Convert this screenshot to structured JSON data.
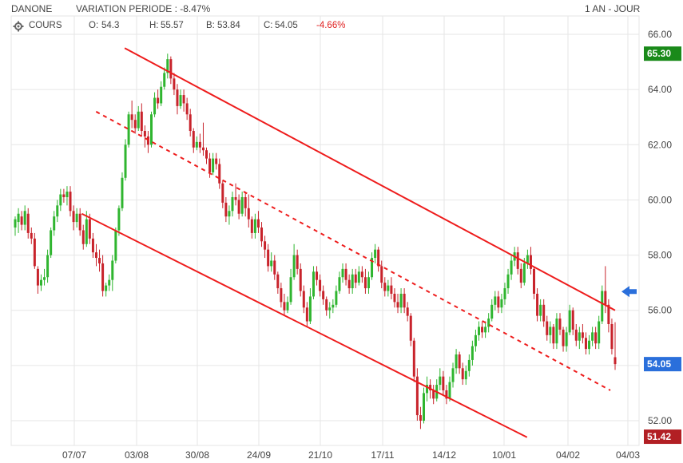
{
  "header": {
    "symbol": "DANONE",
    "variation_label": "VARIATION PERIODE : -8.47%",
    "period": "1 AN - JOUR"
  },
  "ohlc_bar": {
    "series_label": "COURS",
    "open_label": "O:",
    "open": "54.3",
    "high_label": "H:",
    "high": "55.57",
    "low_label": "B:",
    "low": "53.84",
    "close_label": "C:",
    "close": "54.05",
    "change": "-4.66%"
  },
  "colors": {
    "up": "#2fb52f",
    "down": "#c8232b",
    "trend": "#ee1c1c",
    "grid": "#e6e6e6",
    "badge_high": "#1a8a1a",
    "badge_last": "#2a6fdb",
    "badge_low": "#b21f24",
    "arrow": "#2a6fdb"
  },
  "badges": {
    "high": "65.30",
    "last": "54.05",
    "low": "51.42"
  },
  "icons": {
    "settings": "gear-icon",
    "marker": "arrow-left-icon"
  },
  "chart_data": {
    "type": "candlestick",
    "y_ticks": [
      "52.00",
      "54.00",
      "56.00",
      "58.00",
      "60.00",
      "62.00",
      "64.00",
      "66.00"
    ],
    "ylim": [
      51.5,
      66.5
    ],
    "x_ticks": [
      "07/07",
      "03/08",
      "30/08",
      "24/09",
      "21/10",
      "17/11",
      "14/12",
      "10/01",
      "04/02",
      "04/03"
    ],
    "grid": true,
    "trend_lines": [
      {
        "name": "upper channel",
        "style": "solid",
        "from": {
          "day": 46,
          "price": 65.5
        },
        "to": {
          "day": 252,
          "price": 56.0
        }
      },
      {
        "name": "middle channel",
        "style": "dashed",
        "from": {
          "day": 34,
          "price": 63.2
        },
        "to": {
          "day": 250,
          "price": 53.1
        }
      },
      {
        "name": "lower channel",
        "style": "solid",
        "from": {
          "day": 28,
          "price": 59.5
        },
        "to": {
          "day": 215,
          "price": 51.4
        }
      }
    ],
    "candles": [
      [
        59.0,
        59.4,
        58.7,
        59.3
      ],
      [
        59.2,
        59.7,
        58.8,
        59.5
      ],
      [
        59.4,
        59.6,
        58.9,
        59.1
      ],
      [
        59.1,
        59.8,
        58.9,
        59.6
      ],
      [
        59.5,
        59.7,
        58.6,
        58.8
      ],
      [
        58.8,
        59.0,
        58.4,
        58.6
      ],
      [
        58.6,
        58.8,
        57.5,
        57.6
      ],
      [
        57.5,
        57.6,
        56.6,
        56.9
      ],
      [
        56.9,
        57.3,
        56.7,
        57.1
      ],
      [
        57.1,
        57.5,
        56.9,
        57.2
      ],
      [
        57.2,
        58.2,
        57.0,
        58.0
      ],
      [
        58.0,
        59.0,
        57.9,
        58.9
      ],
      [
        58.9,
        59.6,
        58.7,
        59.4
      ],
      [
        59.4,
        60.0,
        59.2,
        59.8
      ],
      [
        59.8,
        60.4,
        59.6,
        60.2
      ],
      [
        60.2,
        60.4,
        59.9,
        60.1
      ],
      [
        60.1,
        60.5,
        59.8,
        60.3
      ],
      [
        60.3,
        60.5,
        59.4,
        59.6
      ],
      [
        59.6,
        59.8,
        58.9,
        59.2
      ],
      [
        59.2,
        59.7,
        59.0,
        59.5
      ],
      [
        59.5,
        59.7,
        58.7,
        58.9
      ],
      [
        58.9,
        59.1,
        58.2,
        58.4
      ],
      [
        58.4,
        59.6,
        58.3,
        59.3
      ],
      [
        59.3,
        59.5,
        58.4,
        58.6
      ],
      [
        58.6,
        58.8,
        57.9,
        58.1
      ],
      [
        58.1,
        58.4,
        57.6,
        57.9
      ],
      [
        57.9,
        58.2,
        57.4,
        57.7
      ],
      [
        57.7,
        58.0,
        56.5,
        56.7
      ],
      [
        56.7,
        57.0,
        56.5,
        56.9
      ],
      [
        56.9,
        57.3,
        56.7,
        57.1
      ],
      [
        57.1,
        58.0,
        56.7,
        57.8
      ],
      [
        57.8,
        59.0,
        57.7,
        58.9
      ],
      [
        58.9,
        59.8,
        58.7,
        59.7
      ],
      [
        59.7,
        61.0,
        59.6,
        60.8
      ],
      [
        60.8,
        62.2,
        60.7,
        62.0
      ],
      [
        62.0,
        63.2,
        61.9,
        63.1
      ],
      [
        63.1,
        63.6,
        62.6,
        62.9
      ],
      [
        62.9,
        63.1,
        62.4,
        62.6
      ],
      [
        62.6,
        63.4,
        62.5,
        63.2
      ],
      [
        63.2,
        63.5,
        62.3,
        62.5
      ],
      [
        62.5,
        62.7,
        61.9,
        62.3
      ],
      [
        62.3,
        62.5,
        61.7,
        62.0
      ],
      [
        62.0,
        63.2,
        61.9,
        63.1
      ],
      [
        63.1,
        63.9,
        63.0,
        63.7
      ],
      [
        63.7,
        64.0,
        63.3,
        63.5
      ],
      [
        63.5,
        64.3,
        63.4,
        64.1
      ],
      [
        64.1,
        64.8,
        64.0,
        64.6
      ],
      [
        64.6,
        65.3,
        64.4,
        65.1
      ],
      [
        65.1,
        65.2,
        64.2,
        64.4
      ],
      [
        64.4,
        64.6,
        63.8,
        64.0
      ],
      [
        64.0,
        64.2,
        63.1,
        63.4
      ],
      [
        63.4,
        64.0,
        63.3,
        63.8
      ],
      [
        63.8,
        64.0,
        63.2,
        63.5
      ],
      [
        63.5,
        63.7,
        62.9,
        63.1
      ],
      [
        63.1,
        63.3,
        62.3,
        62.5
      ],
      [
        62.5,
        62.6,
        61.7,
        61.9
      ],
      [
        61.9,
        62.3,
        61.8,
        62.1
      ],
      [
        62.1,
        62.4,
        61.7,
        61.9
      ],
      [
        61.9,
        62.8,
        61.6,
        61.8
      ],
      [
        61.8,
        61.9,
        61.3,
        61.5
      ],
      [
        61.5,
        61.7,
        60.8,
        61.0
      ],
      [
        61.0,
        61.7,
        60.9,
        61.5
      ],
      [
        61.5,
        61.7,
        61.1,
        61.3
      ],
      [
        61.3,
        61.5,
        60.4,
        60.6
      ],
      [
        60.6,
        60.7,
        59.7,
        59.9
      ],
      [
        59.9,
        60.1,
        59.2,
        59.4
      ],
      [
        59.4,
        59.8,
        59.1,
        59.6
      ],
      [
        59.6,
        60.3,
        59.4,
        60.1
      ],
      [
        60.1,
        60.6,
        59.8,
        60.0
      ],
      [
        60.0,
        60.2,
        59.3,
        59.5
      ],
      [
        59.5,
        60.3,
        59.4,
        60.1
      ],
      [
        60.1,
        60.3,
        59.4,
        59.7
      ],
      [
        59.7,
        60.2,
        59.0,
        59.3
      ],
      [
        59.3,
        59.4,
        58.6,
        58.8
      ],
      [
        58.8,
        59.5,
        58.6,
        59.3
      ],
      [
        59.3,
        59.6,
        58.8,
        59.0
      ],
      [
        59.0,
        59.2,
        58.3,
        58.5
      ],
      [
        58.5,
        58.7,
        57.9,
        58.2
      ],
      [
        58.2,
        58.4,
        57.4,
        57.6
      ],
      [
        57.6,
        58.1,
        57.4,
        57.8
      ],
      [
        57.8,
        58.0,
        57.1,
        57.3
      ],
      [
        57.3,
        57.4,
        56.6,
        56.8
      ],
      [
        56.8,
        57.0,
        56.1,
        56.3
      ],
      [
        56.3,
        56.6,
        55.8,
        56.0
      ],
      [
        56.0,
        56.5,
        55.9,
        56.3
      ],
      [
        56.3,
        57.5,
        56.2,
        57.2
      ],
      [
        57.2,
        58.4,
        57.1,
        58.0
      ],
      [
        58.0,
        58.2,
        57.3,
        57.5
      ],
      [
        57.5,
        57.7,
        56.5,
        56.7
      ],
      [
        56.7,
        56.9,
        55.9,
        56.1
      ],
      [
        56.1,
        56.3,
        55.4,
        55.6
      ],
      [
        55.6,
        56.8,
        55.5,
        56.5
      ],
      [
        56.5,
        57.6,
        56.4,
        57.4
      ],
      [
        57.4,
        57.6,
        56.9,
        57.1
      ],
      [
        57.1,
        57.3,
        56.5,
        56.7
      ],
      [
        56.7,
        56.9,
        56.2,
        56.4
      ],
      [
        56.4,
        56.5,
        55.8,
        56.0
      ],
      [
        56.0,
        56.3,
        55.7,
        56.1
      ],
      [
        56.1,
        56.4,
        55.9,
        56.2
      ],
      [
        56.2,
        56.9,
        56.1,
        56.7
      ],
      [
        56.7,
        57.4,
        56.6,
        57.2
      ],
      [
        57.2,
        57.7,
        57.0,
        57.5
      ],
      [
        57.5,
        57.7,
        56.9,
        57.1
      ],
      [
        57.1,
        57.3,
        56.6,
        56.8
      ],
      [
        56.8,
        57.5,
        56.6,
        57.3
      ],
      [
        57.3,
        57.5,
        56.8,
        57.0
      ],
      [
        57.0,
        57.6,
        56.9,
        57.4
      ],
      [
        57.4,
        57.6,
        57.0,
        57.2
      ],
      [
        57.2,
        57.5,
        56.6,
        56.8
      ],
      [
        56.8,
        57.4,
        56.6,
        57.2
      ],
      [
        57.2,
        58.1,
        57.1,
        57.9
      ],
      [
        57.9,
        58.4,
        57.7,
        58.2
      ],
      [
        58.2,
        58.3,
        57.4,
        57.6
      ],
      [
        57.6,
        57.8,
        56.8,
        57.0
      ],
      [
        57.0,
        57.2,
        56.5,
        56.7
      ],
      [
        56.7,
        57.1,
        56.5,
        56.9
      ],
      [
        56.9,
        57.2,
        56.4,
        56.6
      ],
      [
        56.6,
        56.8,
        56.1,
        56.3
      ],
      [
        56.3,
        56.6,
        55.9,
        56.1
      ],
      [
        56.1,
        56.8,
        55.9,
        56.6
      ],
      [
        56.6,
        56.8,
        55.9,
        56.1
      ],
      [
        56.1,
        56.3,
        55.6,
        55.8
      ],
      [
        55.8,
        55.9,
        54.7,
        54.9
      ],
      [
        54.9,
        55.0,
        53.4,
        53.6
      ],
      [
        53.6,
        53.9,
        52.0,
        52.2
      ],
      [
        52.2,
        52.5,
        51.7,
        52.0
      ],
      [
        52.0,
        53.2,
        51.9,
        53.0
      ],
      [
        53.0,
        53.6,
        52.7,
        53.3
      ],
      [
        53.3,
        53.5,
        52.8,
        53.1
      ],
      [
        53.1,
        53.3,
        52.6,
        52.8
      ],
      [
        52.8,
        53.5,
        52.7,
        53.3
      ],
      [
        53.3,
        53.9,
        53.1,
        53.6
      ],
      [
        53.6,
        53.8,
        52.9,
        53.1
      ],
      [
        53.1,
        53.3,
        52.6,
        52.8
      ],
      [
        52.8,
        53.6,
        52.7,
        53.4
      ],
      [
        53.4,
        54.1,
        53.2,
        53.9
      ],
      [
        53.9,
        54.6,
        53.7,
        54.4
      ],
      [
        54.4,
        54.5,
        53.7,
        53.9
      ],
      [
        53.9,
        54.1,
        53.3,
        53.5
      ],
      [
        53.5,
        54.0,
        53.3,
        53.8
      ],
      [
        53.8,
        54.4,
        53.6,
        54.2
      ],
      [
        54.2,
        54.9,
        54.0,
        54.7
      ],
      [
        54.7,
        55.3,
        54.5,
        55.1
      ],
      [
        55.1,
        55.6,
        54.9,
        55.4
      ],
      [
        55.4,
        55.6,
        55.0,
        55.2
      ],
      [
        55.2,
        55.6,
        55.0,
        55.4
      ],
      [
        55.4,
        55.9,
        55.2,
        55.7
      ],
      [
        55.7,
        56.4,
        55.6,
        56.2
      ],
      [
        56.2,
        56.7,
        56.0,
        56.5
      ],
      [
        56.5,
        56.7,
        55.9,
        56.1
      ],
      [
        56.1,
        56.6,
        55.9,
        56.4
      ],
      [
        56.4,
        57.0,
        56.2,
        56.8
      ],
      [
        56.8,
        57.5,
        56.6,
        57.3
      ],
      [
        57.3,
        58.0,
        57.1,
        57.8
      ],
      [
        57.8,
        58.3,
        57.6,
        58.1
      ],
      [
        58.1,
        58.3,
        57.3,
        57.5
      ],
      [
        57.5,
        57.7,
        56.8,
        57.0
      ],
      [
        57.0,
        57.9,
        56.9,
        57.7
      ],
      [
        57.7,
        58.2,
        57.5,
        58.0
      ],
      [
        58.0,
        58.3,
        57.3,
        57.5
      ],
      [
        57.5,
        57.6,
        56.4,
        56.6
      ],
      [
        56.6,
        56.8,
        55.6,
        55.8
      ],
      [
        55.8,
        56.4,
        55.6,
        56.2
      ],
      [
        56.2,
        56.4,
        55.4,
        55.6
      ],
      [
        55.6,
        55.8,
        54.9,
        55.1
      ],
      [
        55.1,
        55.6,
        54.8,
        55.4
      ],
      [
        55.4,
        55.5,
        54.6,
        54.8
      ],
      [
        54.8,
        55.9,
        54.6,
        55.7
      ],
      [
        55.7,
        55.9,
        55.1,
        55.3
      ],
      [
        55.3,
        55.4,
        54.5,
        54.7
      ],
      [
        54.7,
        55.4,
        54.5,
        55.2
      ],
      [
        55.2,
        56.2,
        55.1,
        56.0
      ],
      [
        56.0,
        56.1,
        55.1,
        55.3
      ],
      [
        55.3,
        55.5,
        54.7,
        54.9
      ],
      [
        54.9,
        55.4,
        54.6,
        55.2
      ],
      [
        55.2,
        55.5,
        54.8,
        55.0
      ],
      [
        55.0,
        55.2,
        54.4,
        54.6
      ],
      [
        54.6,
        55.1,
        54.4,
        54.9
      ],
      [
        54.9,
        55.4,
        54.7,
        55.2
      ],
      [
        55.2,
        55.4,
        54.6,
        54.8
      ],
      [
        54.8,
        55.8,
        54.6,
        55.6
      ],
      [
        55.6,
        56.9,
        55.5,
        56.7
      ],
      [
        56.7,
        57.6,
        55.9,
        56.2
      ],
      [
        56.2,
        56.4,
        55.2,
        55.5
      ],
      [
        55.5,
        55.7,
        54.4,
        54.6
      ],
      [
        54.3,
        55.57,
        53.84,
        54.05
      ]
    ]
  }
}
